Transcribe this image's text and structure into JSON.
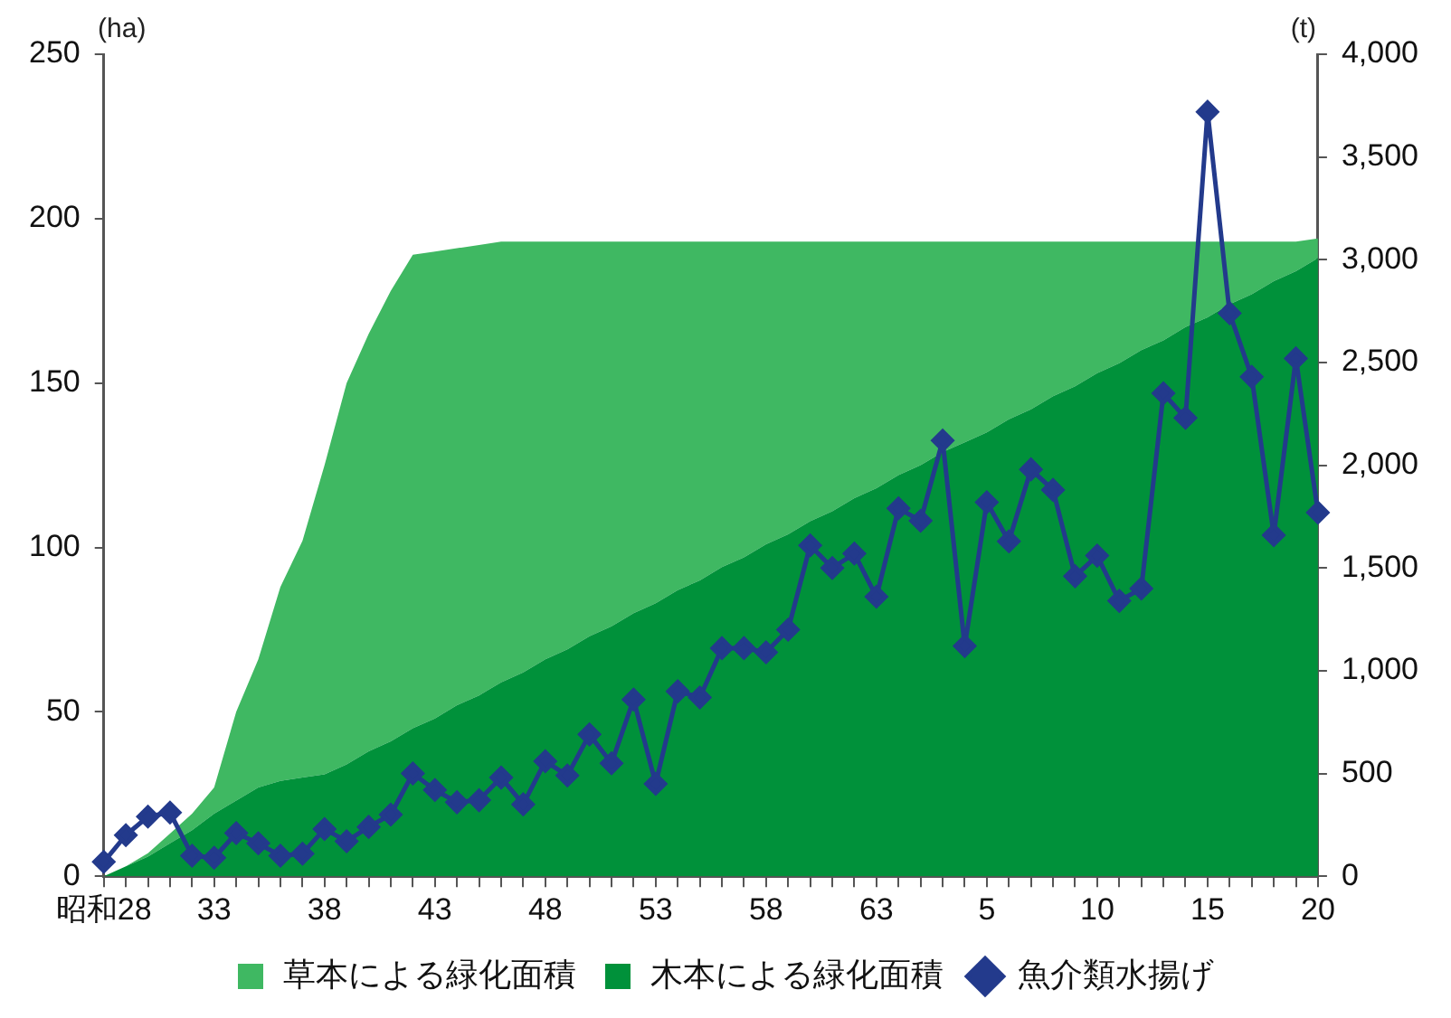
{
  "chart_data": {
    "type": "area",
    "stacked": true,
    "ylabel": "(ha)",
    "y2label": "(t)",
    "categories": [
      "昭和28",
      null,
      null,
      null,
      null,
      "33",
      null,
      null,
      null,
      null,
      "38",
      null,
      null,
      null,
      null,
      "43",
      null,
      null,
      null,
      null,
      "48",
      null,
      null,
      null,
      null,
      "53",
      null,
      null,
      null,
      null,
      "58",
      null,
      null,
      null,
      null,
      "63",
      null,
      null,
      null,
      null,
      "5",
      null,
      null,
      null,
      null,
      "10",
      null,
      null,
      null,
      null,
      "15",
      null,
      null,
      null,
      null,
      "20"
    ],
    "series": [
      {
        "name": "木本による緑化面積",
        "color": "#00913a",
        "values": [
          0,
          3,
          6,
          10,
          14,
          19,
          23,
          27,
          29,
          30,
          31,
          34,
          38,
          41,
          45,
          48,
          52,
          55,
          59,
          62,
          66,
          69,
          73,
          76,
          80,
          83,
          87,
          90,
          94,
          97,
          101,
          104,
          108,
          111,
          115,
          118,
          122,
          125,
          129,
          132,
          135,
          139,
          142,
          146,
          149,
          153,
          156,
          160,
          163,
          167,
          170,
          174,
          177,
          181,
          184,
          188
        ]
      },
      {
        "name": "草本による緑化面積",
        "color": "#3fb862",
        "values": [
          0,
          0,
          1,
          3,
          5,
          8,
          27,
          39,
          59,
          72,
          94,
          116,
          127,
          137,
          144,
          142,
          139,
          137,
          134,
          131,
          127,
          124,
          120,
          117,
          113,
          110,
          106,
          103,
          99,
          96,
          92,
          89,
          85,
          82,
          78,
          75,
          71,
          68,
          64,
          61,
          58,
          54,
          51,
          47,
          44,
          40,
          37,
          33,
          30,
          26,
          23,
          19,
          16,
          12,
          9,
          6
        ]
      },
      {
        "name": "魚介類水揚げ",
        "type": "line",
        "axis": "y2",
        "color": "#233a8c",
        "marker": "diamond",
        "values": [
          70,
          200,
          290,
          310,
          100,
          90,
          210,
          160,
          100,
          110,
          230,
          170,
          240,
          300,
          500,
          420,
          360,
          370,
          480,
          350,
          560,
          490,
          690,
          550,
          860,
          450,
          900,
          870,
          1110,
          1110,
          1090,
          1200,
          1610,
          1500,
          1570,
          1360,
          1790,
          1730,
          2120,
          1120,
          1820,
          1630,
          1980,
          1880,
          1460,
          1560,
          1340,
          1400,
          2350,
          2230,
          3720,
          2740,
          2430,
          1660,
          2520,
          1770
        ]
      }
    ],
    "ylim": [
      0,
      250
    ],
    "yticks": [
      0,
      50,
      100,
      150,
      200,
      250
    ],
    "y2lim": [
      0,
      4000
    ],
    "y2ticks": [
      0,
      500,
      {
        "value": 1000,
        "label": "1,000"
      },
      {
        "value": 1500,
        "label": "1,500"
      },
      {
        "value": 2000,
        "label": "2,000"
      },
      {
        "value": 2500,
        "label": "2,500"
      },
      {
        "value": 3000,
        "label": "3,000"
      },
      {
        "value": 3500,
        "label": "3,500"
      },
      {
        "value": 4000,
        "label": "4,000"
      }
    ],
    "grid": false,
    "legend": "bottom"
  }
}
